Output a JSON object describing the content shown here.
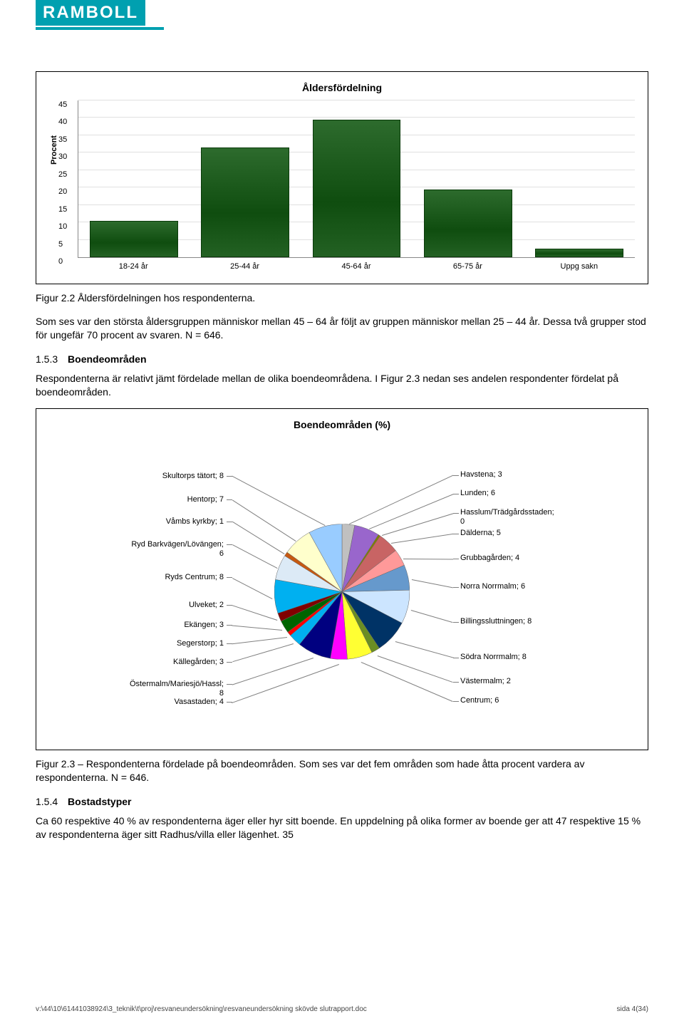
{
  "logo": {
    "text": "RAMBOLL"
  },
  "bar_chart": {
    "type": "bar",
    "title": "Åldersfördelning",
    "ylabel": "Procent",
    "ylim": [
      0,
      45
    ],
    "ytick_step": 5,
    "grid_color": "#e0e0e0",
    "axis_color": "#888888",
    "bar_fill": "#0f4d0f",
    "bar_edge": "#0a3a0a",
    "categories": [
      "18-24 år",
      "25-44 år",
      "45-64 år",
      "65-75 år",
      "Uppg sakn"
    ],
    "values": [
      10,
      31,
      39,
      19,
      2
    ],
    "label_fontsize": 11,
    "title_fontsize": 14,
    "bar_width": 0.78
  },
  "fig22_caption": "Figur 2.2 Åldersfördelningen hos respondenterna.",
  "para1": "Som ses var den största åldersgruppen människor mellan 45 – 64 år följt av gruppen människor mellan 25 – 44 år. Dessa två grupper stod för ungefär 70 procent av svaren. N = 646.",
  "sec153": {
    "num": "1.5.3",
    "title": "Boendeområden"
  },
  "para2": "Respondenterna är relativt jämt fördelade mellan de olika boendeområdena. I Figur 2.3 nedan ses andelen respondenter fördelat på boendeområden.",
  "pie_chart": {
    "type": "pie",
    "title": "Boendeområden (%)",
    "title_fontsize": 14,
    "label_fontsize": 11,
    "background_color": "#ffffff",
    "slices": [
      {
        "label": "Havstena; 3",
        "value": 3,
        "color": "#c0c0c0"
      },
      {
        "label": "Lunden; 6",
        "value": 6,
        "color": "#9966cc"
      },
      {
        "label": "Hasslum/Trädgårdsstaden;\n0",
        "value": 0.5,
        "color": "#808000"
      },
      {
        "label": "Dälderna; 5",
        "value": 5,
        "color": "#c86464"
      },
      {
        "label": "Grubbagården; 4",
        "value": 4,
        "color": "#ff9999"
      },
      {
        "label": "Norra Norrmalm; 6",
        "value": 6,
        "color": "#6699cc"
      },
      {
        "label": "Billingssluttningen; 8",
        "value": 8,
        "color": "#cce5ff"
      },
      {
        "label": "Södra Norrmalm; 8",
        "value": 8,
        "color": "#003366"
      },
      {
        "label": "Västermalm; 2",
        "value": 2,
        "color": "#6b8e23"
      },
      {
        "label": "Centrum; 6",
        "value": 6,
        "color": "#ffff33"
      },
      {
        "label": "Vasastaden; 4",
        "value": 4,
        "color": "#ff00ff"
      },
      {
        "label": "Östermalm/Mariesjö/Hassl;\n8",
        "value": 8,
        "color": "#000080"
      },
      {
        "label": "Källegården; 3",
        "value": 3,
        "color": "#00b0f0"
      },
      {
        "label": "Segerstorp; 1",
        "value": 1,
        "color": "#ff0000"
      },
      {
        "label": "Ekängen; 3",
        "value": 3,
        "color": "#006400"
      },
      {
        "label": "Ulveket; 2",
        "value": 2,
        "color": "#800000"
      },
      {
        "label": "Ryds Centrum; 8",
        "value": 8,
        "color": "#00b0f0"
      },
      {
        "label": "Ryd Barkvägen/Lövängen;\n6",
        "value": 6,
        "color": "#dceaf6"
      },
      {
        "label": "Våmbs kyrkby; 1",
        "value": 1,
        "color": "#c65911"
      },
      {
        "label": "Hentorp; 7",
        "value": 7,
        "color": "#ffffcc"
      },
      {
        "label": "Skultorps tätort; 8",
        "value": 8,
        "color": "#99ccff"
      }
    ]
  },
  "fig23_caption": "Figur 2.3 – Respondenterna fördelade på boendeområden. Som ses var det fem områden som hade åtta procent vardera av respondenterna. N = 646.",
  "sec154": {
    "num": "1.5.4",
    "title": "Bostadstyper"
  },
  "para3": "Ca 60 respektive 40 % av respondenterna äger eller hyr sitt boende. En uppdelning på olika former av boende ger att 47 respektive 15 % av respondenterna äger sitt Radhus/villa eller lägenhet. 35",
  "footer": {
    "path": "v:\\44\\10\\61441038924\\3_teknik\\t\\proj\\resvaneundersökning\\resvaneundersökning skövde slutrapport.doc",
    "page": "sida 4(34)"
  }
}
